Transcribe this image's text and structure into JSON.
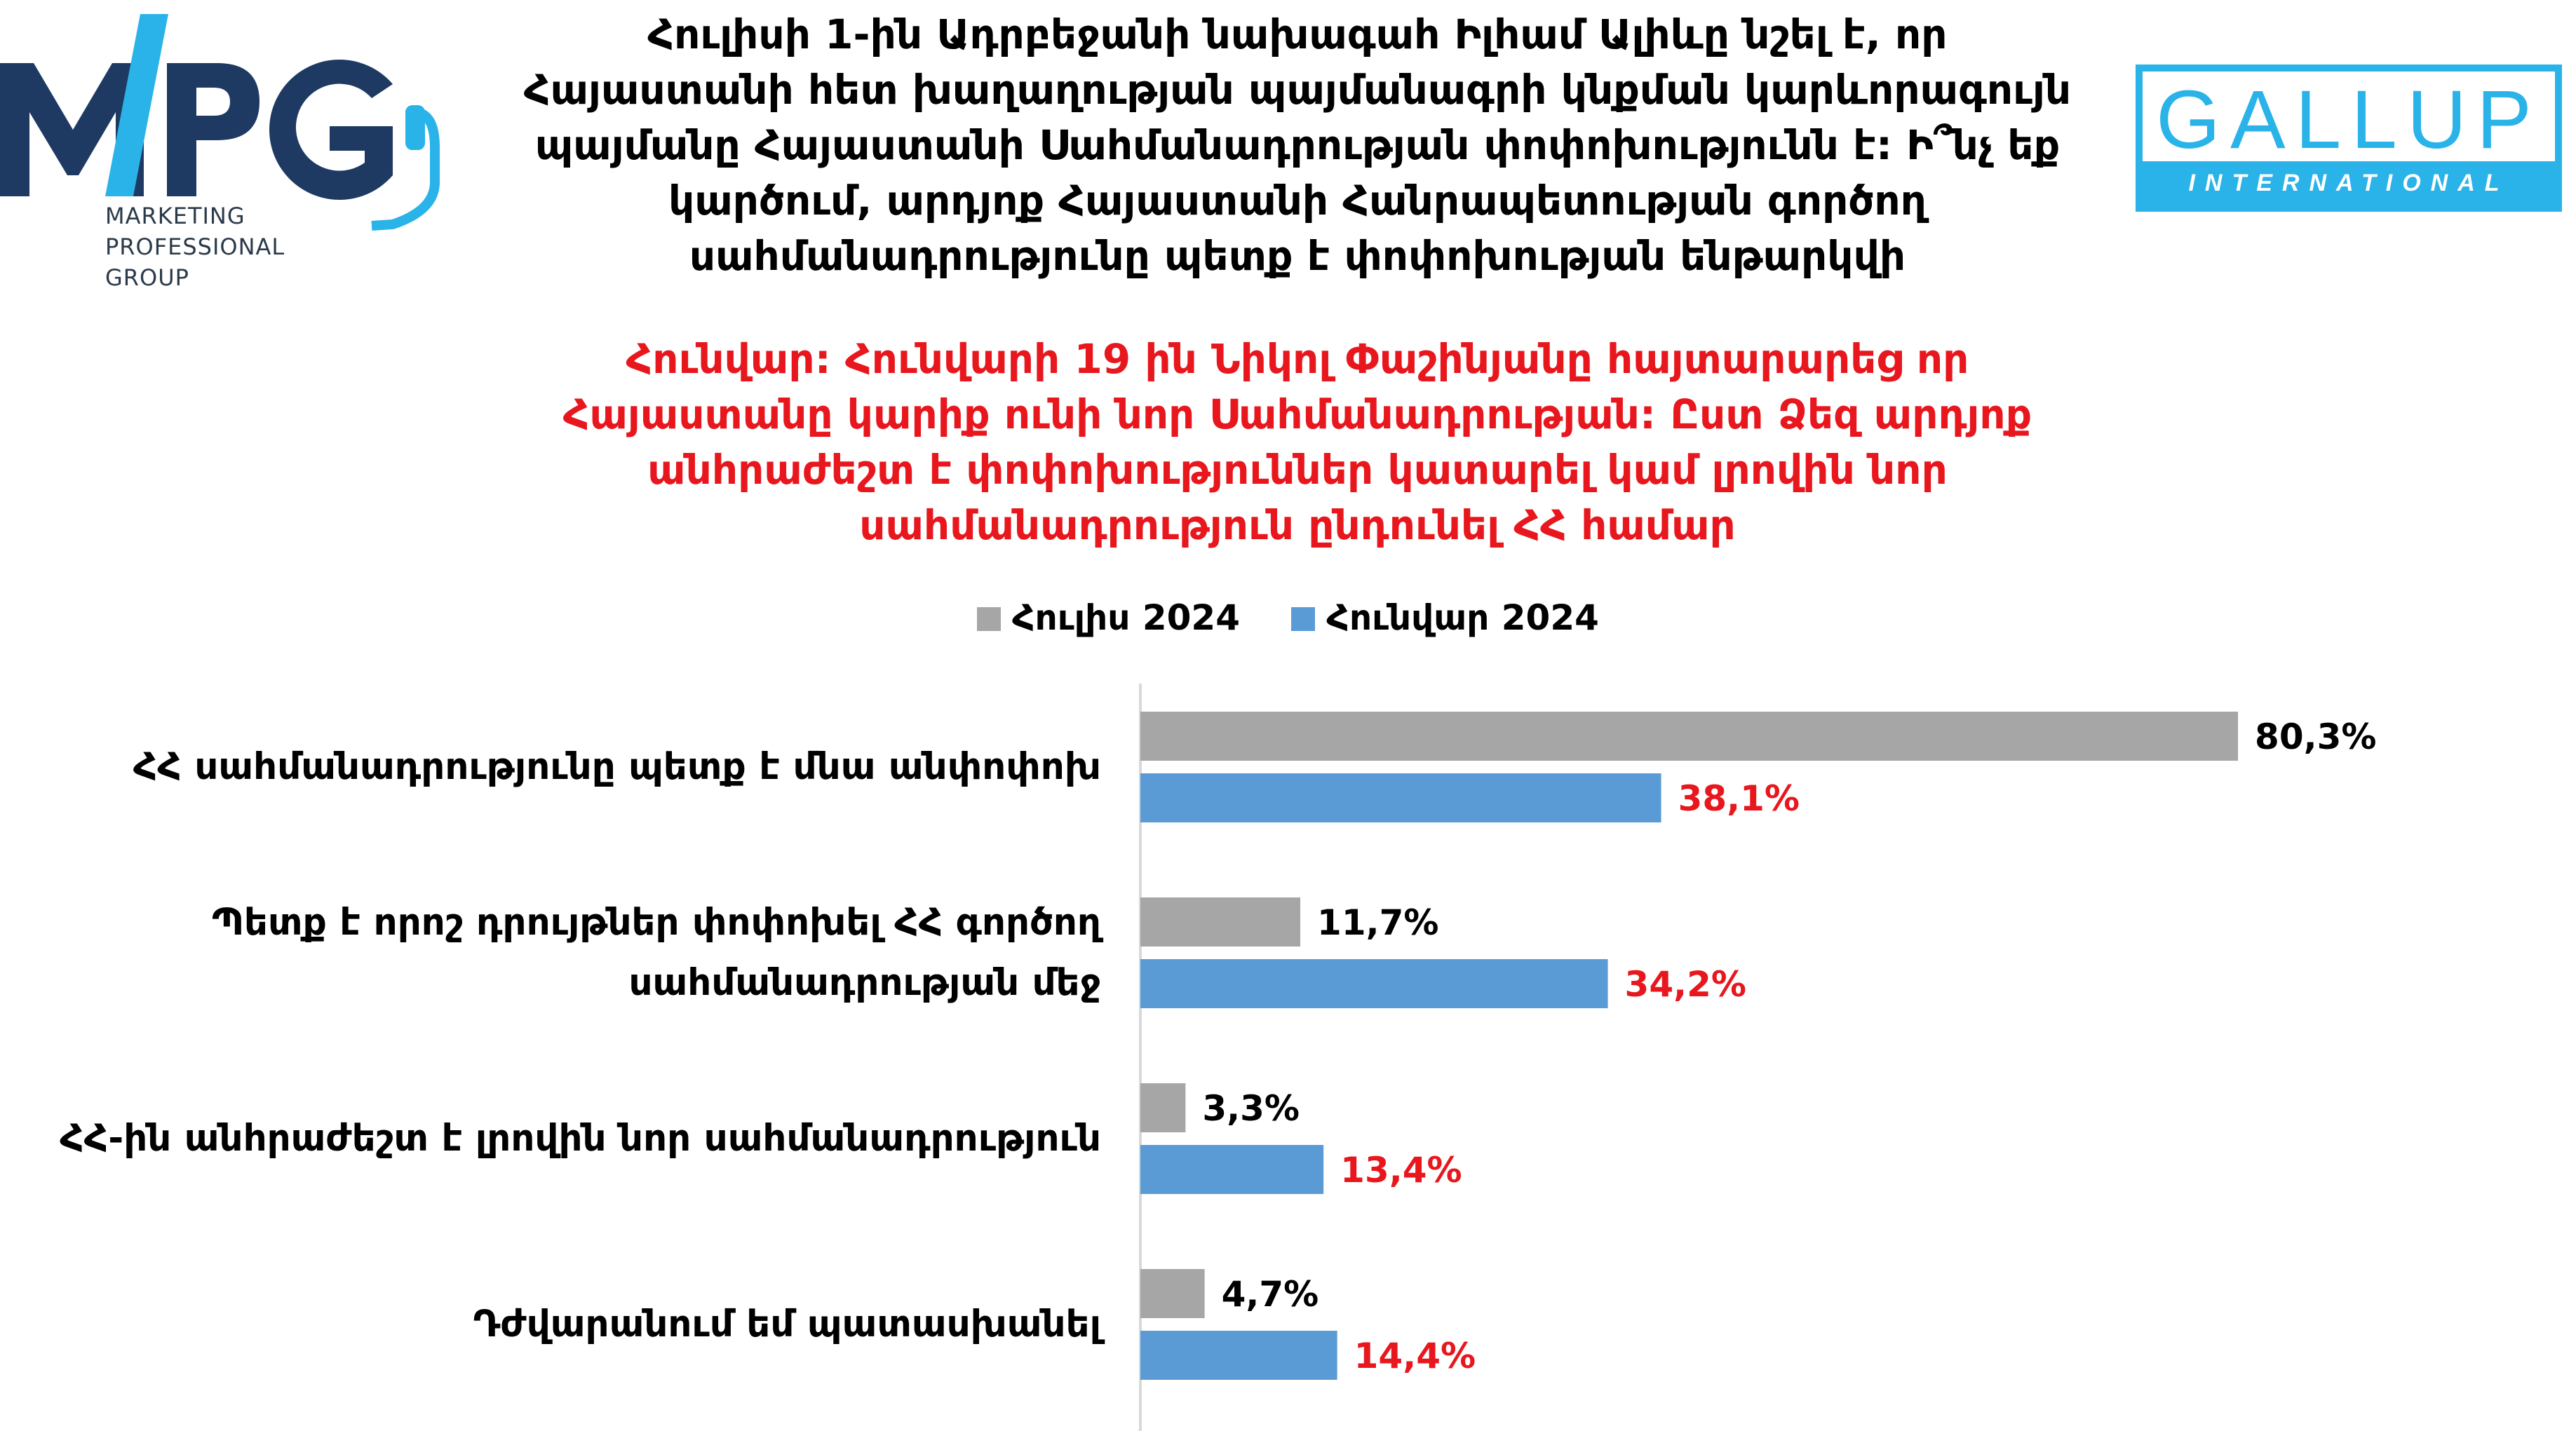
{
  "logos": {
    "mpg": {
      "letters": "MPG",
      "line1": "MARKETING",
      "line2": "PROFESSIONAL",
      "line3": "GROUP"
    },
    "gallup": {
      "word": "GALLUP",
      "band": "INTERNATIONAL"
    }
  },
  "title_lines": [
    "Հուլիսի 1-ին Ադրբեջանի նախագահ Իլհամ Ալիևը նշել է, որ",
    "Հայաստանի հետ խաղաղության պայմանագրի կնքման կարևորագույն",
    "պայմանը Հայաստանի Սահմանադրության փոփոխությունն է: Ի՞նչ եք",
    "կարծում, արդյոք Հայաստանի Հանրապետության գործող",
    "սահմանադրությունը պետք է փոփոխության ենթարկվի"
  ],
  "subtitle_lines": [
    "Հունվար: Հունվարի 19 ին Նիկոլ Փաշինյանը հայտարարեց որ",
    "Հայաստանը կարիք ունի նոր Սահմանադրության: Ըստ Ձեզ արդյոք",
    "անհրաժեշտ է փոփոխություններ կատարել կամ լրովին նոր",
    "սահմանադրություն ընդունել ՀՀ համար"
  ],
  "colors": {
    "july": "#a6a6a6",
    "january": "#5b9bd5",
    "july_label": "#000000",
    "january_label": "#e8171e",
    "axis": "#d9d9d9"
  },
  "chart_data": {
    "type": "bar",
    "orientation": "horizontal",
    "legend_position": "top",
    "grid": false,
    "xlim": [
      0,
      100
    ],
    "categories": [
      [
        "ՀՀ սահմանադրությունը պետք է մնա անփոփոխ"
      ],
      [
        "Պետք է որոշ դրույթներ փոփոխել ՀՀ գործող",
        "սահմանադրության մեջ"
      ],
      [
        "ՀՀ-ին անհրաժեշտ է լրովին նոր սահմանադրություն"
      ],
      [
        "Դժվարանում եմ պատասխանել"
      ]
    ],
    "series": [
      {
        "name": "Հուլիս 2024",
        "values": [
          80.3,
          11.7,
          3.3,
          4.7
        ],
        "labels": [
          "80,3%",
          "11,7%",
          "3,3%",
          "4,7%"
        ]
      },
      {
        "name": "Հունվար 2024",
        "values": [
          38.1,
          34.2,
          13.4,
          14.4
        ],
        "labels": [
          "38,1%",
          "34,2%",
          "13,4%",
          "14,4%"
        ]
      }
    ]
  }
}
